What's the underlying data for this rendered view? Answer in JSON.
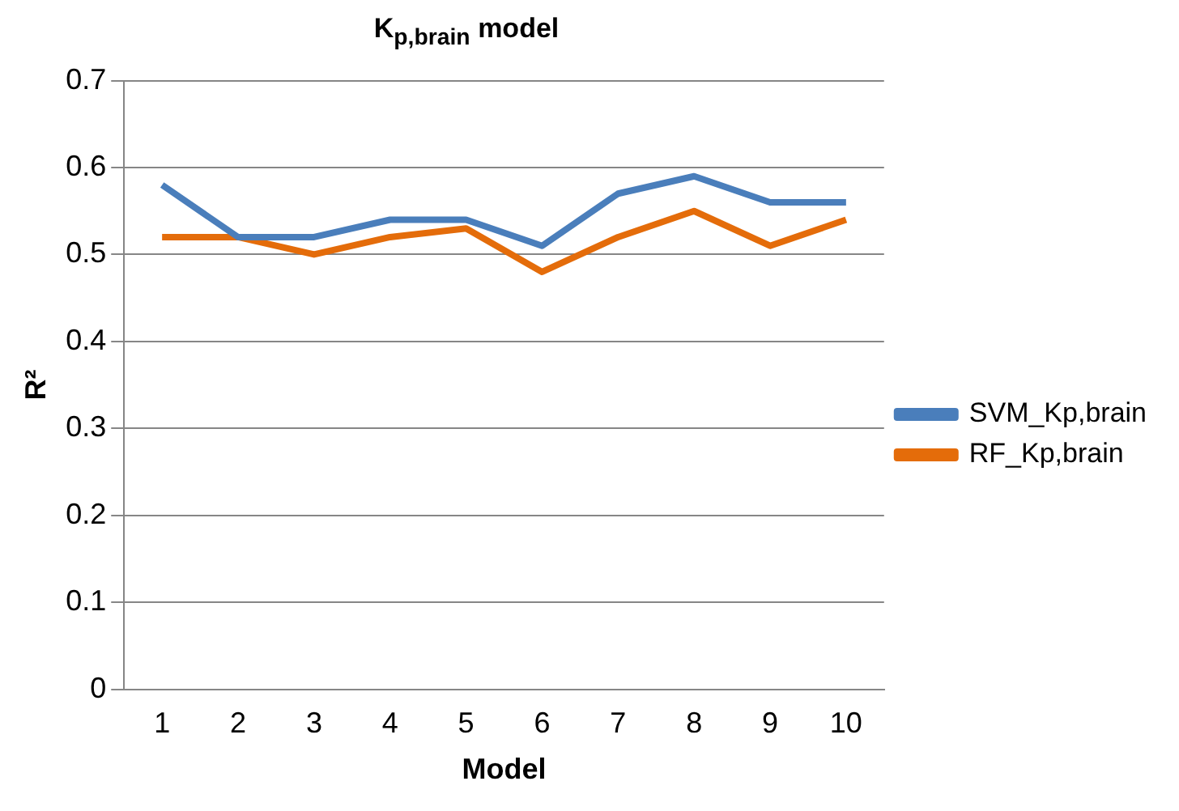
{
  "chart_data": {
    "type": "line",
    "title": "K$_{p,brain}$ model",
    "xlabel": "Model",
    "ylabel": "R²",
    "categories": [
      "1",
      "2",
      "3",
      "4",
      "5",
      "6",
      "7",
      "8",
      "9",
      "10"
    ],
    "series": [
      {
        "name": "SVM_Kp,brain",
        "color": "#4a7ebb",
        "values": [
          0.58,
          0.52,
          0.52,
          0.54,
          0.54,
          0.51,
          0.57,
          0.59,
          0.56,
          0.56
        ]
      },
      {
        "name": "RF_Kp,brain",
        "color": "#e46c0a",
        "values": [
          0.52,
          0.52,
          0.5,
          0.52,
          0.53,
          0.48,
          0.52,
          0.55,
          0.51,
          0.54
        ]
      }
    ],
    "ylim": [
      0,
      0.7
    ],
    "yticks": [
      0,
      0.1,
      0.2,
      0.3,
      0.4,
      0.5,
      0.6,
      0.7
    ],
    "grid": "y",
    "legend": "right",
    "marker": "none",
    "line_style": "solid"
  }
}
